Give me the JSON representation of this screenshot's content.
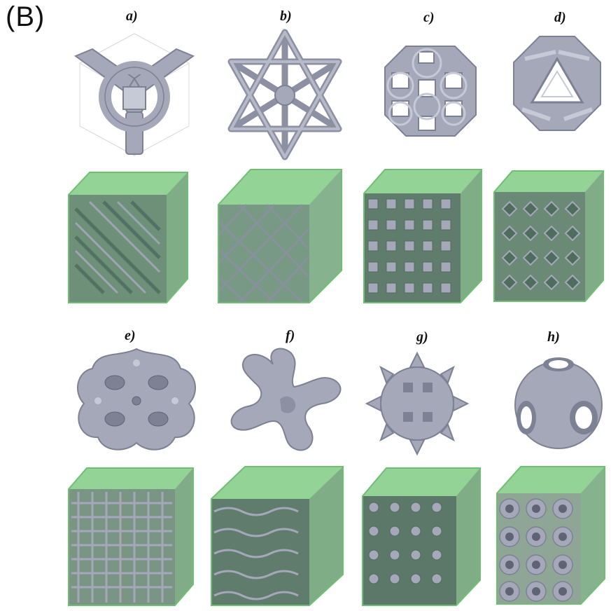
{
  "figure": {
    "panel_label": "(B)",
    "items": [
      {
        "label": "a)"
      },
      {
        "label": "b)"
      },
      {
        "label": "c)"
      },
      {
        "label": "d)"
      },
      {
        "label": "e)"
      },
      {
        "label": "f)"
      },
      {
        "label": "g)"
      },
      {
        "label": "h)"
      }
    ]
  },
  "colors": {
    "strut": "#a4a8b8",
    "strut_dark": "#7c8194",
    "strut_light": "#c6c9d6",
    "cube_face": "#93d396",
    "cube_edge": "#6fbf73",
    "lattice_dark": "#4f6d5d",
    "background": "#ffffff"
  }
}
